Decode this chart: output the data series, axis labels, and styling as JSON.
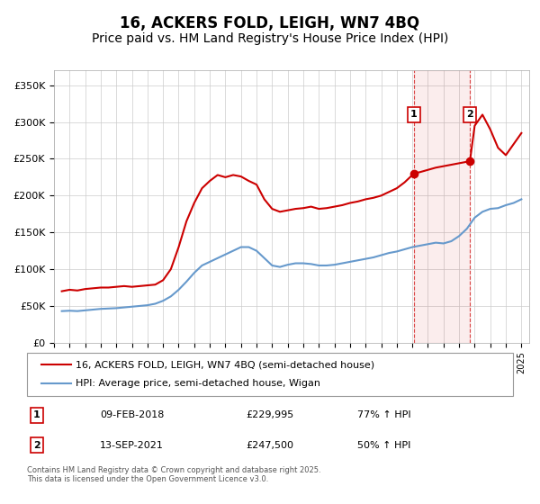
{
  "title": "16, ACKERS FOLD, LEIGH, WN7 4BQ",
  "subtitle": "Price paid vs. HM Land Registry's House Price Index (HPI)",
  "title_fontsize": 12,
  "subtitle_fontsize": 10,
  "background_color": "#ffffff",
  "plot_bg_color": "#ffffff",
  "grid_color": "#cccccc",
  "ylabel_ticks": [
    "£0",
    "£50K",
    "£100K",
    "£150K",
    "£200K",
    "£250K",
    "£300K",
    "£350K"
  ],
  "ytick_vals": [
    0,
    50000,
    100000,
    150000,
    200000,
    250000,
    300000,
    350000
  ],
  "ylim": [
    0,
    370000
  ],
  "xlim_start": 1995.0,
  "xlim_end": 2025.5,
  "red_line_color": "#cc0000",
  "blue_line_color": "#6699cc",
  "sale1_x": 2018.1,
  "sale1_y": 229995,
  "sale2_x": 2021.7,
  "sale2_y": 247500,
  "vline1_x": 2018.1,
  "vline2_x": 2021.7,
  "legend_label_red": "16, ACKERS FOLD, LEIGH, WN7 4BQ (semi-detached house)",
  "legend_label_blue": "HPI: Average price, semi-detached house, Wigan",
  "table_row1": [
    "1",
    "09-FEB-2018",
    "£229,995",
    "77% ↑ HPI"
  ],
  "table_row2": [
    "2",
    "13-SEP-2021",
    "£247,500",
    "50% ↑ HPI"
  ],
  "footnote": "Contains HM Land Registry data © Crown copyright and database right 2025.\nThis data is licensed under the Open Government Licence v3.0.",
  "red_data": {
    "years": [
      1995.5,
      1996.0,
      1996.5,
      1997.0,
      1997.5,
      1998.0,
      1998.5,
      1999.0,
      1999.5,
      2000.0,
      2000.5,
      2001.0,
      2001.5,
      2002.0,
      2002.5,
      2003.0,
      2003.5,
      2004.0,
      2004.5,
      2005.0,
      2005.5,
      2006.0,
      2006.5,
      2007.0,
      2007.5,
      2008.0,
      2008.5,
      2009.0,
      2009.5,
      2010.0,
      2010.5,
      2011.0,
      2011.5,
      2012.0,
      2012.5,
      2013.0,
      2013.5,
      2014.0,
      2014.5,
      2015.0,
      2015.5,
      2016.0,
      2016.5,
      2017.0,
      2017.5,
      2018.1,
      2018.5,
      2019.0,
      2019.5,
      2020.0,
      2020.5,
      2021.0,
      2021.5,
      2021.7,
      2022.0,
      2022.5,
      2023.0,
      2023.5,
      2024.0,
      2024.5,
      2025.0
    ],
    "values": [
      70000,
      72000,
      71000,
      73000,
      74000,
      75000,
      75000,
      76000,
      77000,
      76000,
      77000,
      78000,
      79000,
      85000,
      100000,
      130000,
      165000,
      190000,
      210000,
      220000,
      228000,
      225000,
      228000,
      226000,
      220000,
      215000,
      195000,
      182000,
      178000,
      180000,
      182000,
      183000,
      185000,
      182000,
      183000,
      185000,
      187000,
      190000,
      192000,
      195000,
      197000,
      200000,
      205000,
      210000,
      218000,
      229995,
      232000,
      235000,
      238000,
      240000,
      242000,
      244000,
      246000,
      247500,
      295000,
      310000,
      290000,
      265000,
      255000,
      270000,
      285000
    ],
    "linewidth": 1.5
  },
  "blue_data": {
    "years": [
      1995.5,
      1996.0,
      1996.5,
      1997.0,
      1997.5,
      1998.0,
      1998.5,
      1999.0,
      1999.5,
      2000.0,
      2000.5,
      2001.0,
      2001.5,
      2002.0,
      2002.5,
      2003.0,
      2003.5,
      2004.0,
      2004.5,
      2005.0,
      2005.5,
      2006.0,
      2006.5,
      2007.0,
      2007.5,
      2008.0,
      2008.5,
      2009.0,
      2009.5,
      2010.0,
      2010.5,
      2011.0,
      2011.5,
      2012.0,
      2012.5,
      2013.0,
      2013.5,
      2014.0,
      2014.5,
      2015.0,
      2015.5,
      2016.0,
      2016.5,
      2017.0,
      2017.5,
      2018.0,
      2018.5,
      2019.0,
      2019.5,
      2020.0,
      2020.5,
      2021.0,
      2021.5,
      2022.0,
      2022.5,
      2023.0,
      2023.5,
      2024.0,
      2024.5,
      2025.0
    ],
    "values": [
      43000,
      43500,
      43000,
      44000,
      45000,
      46000,
      46500,
      47000,
      48000,
      49000,
      50000,
      51000,
      53000,
      57000,
      63000,
      72000,
      83000,
      95000,
      105000,
      110000,
      115000,
      120000,
      125000,
      130000,
      130000,
      125000,
      115000,
      105000,
      103000,
      106000,
      108000,
      108000,
      107000,
      105000,
      105000,
      106000,
      108000,
      110000,
      112000,
      114000,
      116000,
      119000,
      122000,
      124000,
      127000,
      130000,
      132000,
      134000,
      136000,
      135000,
      138000,
      145000,
      155000,
      170000,
      178000,
      182000,
      183000,
      187000,
      190000,
      195000
    ],
    "linewidth": 1.5
  }
}
